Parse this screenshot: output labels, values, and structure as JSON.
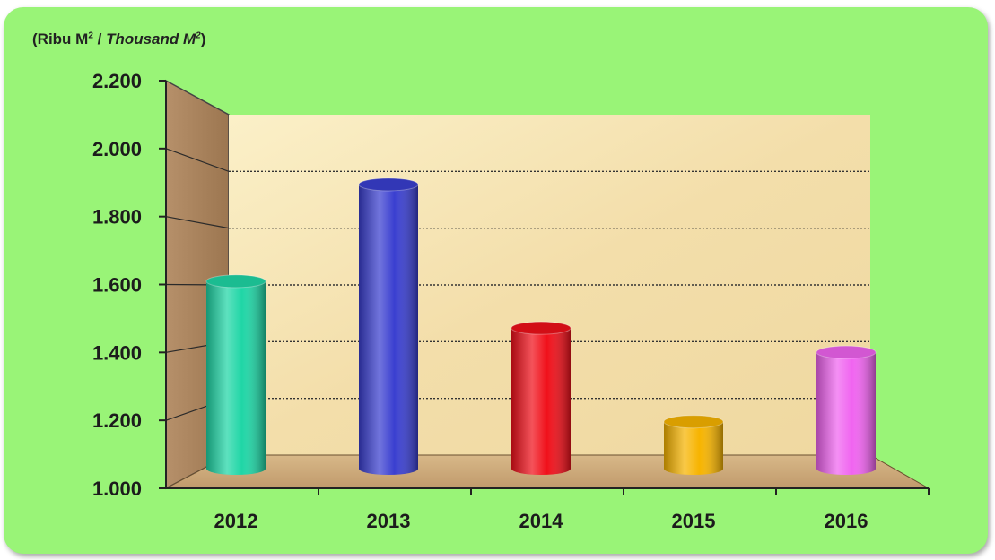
{
  "chart_data": {
    "type": "bar",
    "title": "",
    "unit_label": {
      "part1": "(Ribu M",
      "sup1": "2",
      "sep": " / ",
      "part2": "Thousand M",
      "sup2": "2",
      "close": ")"
    },
    "xlabel": "",
    "ylabel": "",
    "categories": [
      "2012",
      "2013",
      "2014",
      "2015",
      "2016"
    ],
    "values": [
      1620,
      1940,
      1465,
      1155,
      1385
    ],
    "ylim": [
      1000,
      2200
    ],
    "yticks": [
      1000,
      1200,
      1400,
      1600,
      1800,
      2000,
      2200
    ],
    "ytick_labels": [
      "1.000",
      "1.200",
      "1.400",
      "1.600",
      "1.800",
      "2.000",
      "2.200"
    ],
    "grid": true,
    "legend": "none",
    "colors": {
      "background": "#99f477",
      "bars": [
        "#1fd6a6",
        "#3a3fd0",
        "#f0101a",
        "#f7b400",
        "#f064f0"
      ]
    }
  }
}
